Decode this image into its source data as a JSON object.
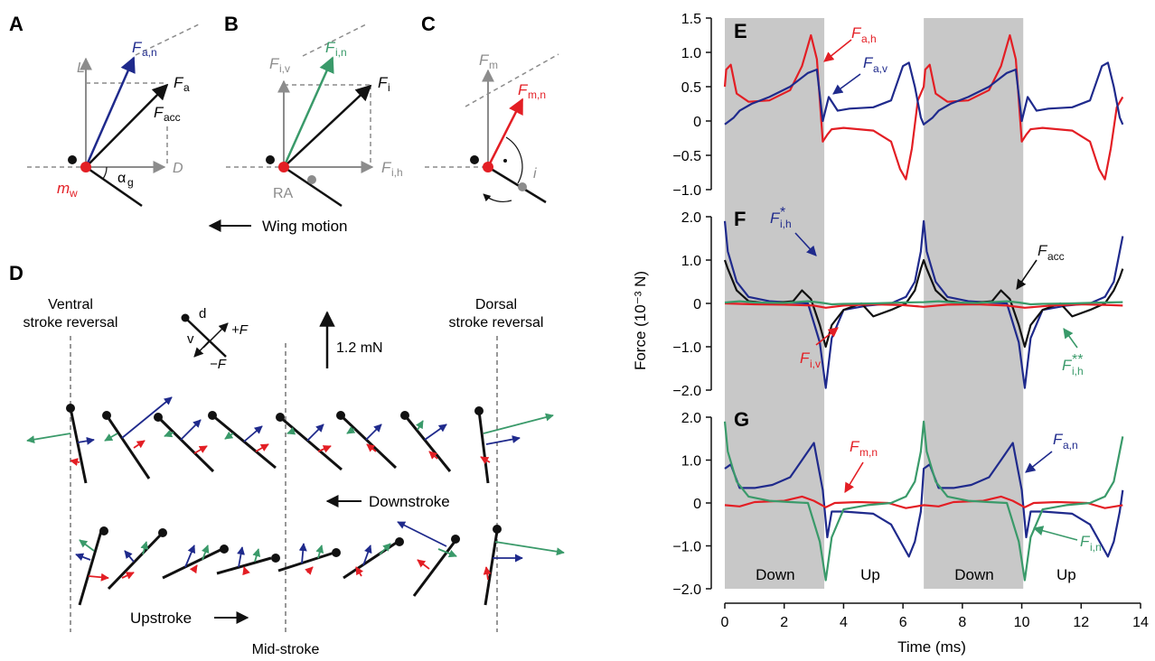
{
  "colors": {
    "red": "#e31e24",
    "blue": "#1f2a8c",
    "green": "#3a9a6a",
    "gray": "#8c8c8c",
    "black": "#111111",
    "shade": "#c8c8c8"
  },
  "panels": {
    "A": {
      "letter": "A",
      "labels": {
        "Fan_main": "F",
        "Fan_sub": "a,n",
        "Fa_main": "F",
        "Fa_sub": "a",
        "Facc_main": "F",
        "Facc_sub": "acc",
        "L": "L",
        "D": "D",
        "mw_main": "m",
        "mw_sub": "w",
        "alpha_main": "α",
        "alpha_sub": "g"
      }
    },
    "B": {
      "letter": "B",
      "labels": {
        "Fiv_main": "F",
        "Fiv_sub": "i,v",
        "Fin_main": "F",
        "Fin_sub": "i,n",
        "Fi_main": "F",
        "Fi_sub": "i",
        "Fih_main": "F",
        "Fih_sub": "i,h",
        "RA": "RA"
      }
    },
    "C": {
      "letter": "C",
      "labels": {
        "Fm_main": "F",
        "Fm_sub": "m",
        "Fmn_main": "F",
        "Fmn_sub": "m,n",
        "i": "i"
      }
    },
    "wing_motion": "Wing motion",
    "D": {
      "letter": "D",
      "ventral_line1": "Ventral",
      "ventral_line2": "stroke reversal",
      "dorsal_line1": "Dorsal",
      "dorsal_line2": "stroke reversal",
      "scale": "1.2 mN",
      "key_d": "d",
      "key_v": "v",
      "key_plus": "+F",
      "key_minus": "−F",
      "downstroke": "Downstroke",
      "upstroke": "Upstroke",
      "midstroke": "Mid-stroke"
    }
  },
  "chart_data": [
    {
      "type": "line",
      "panel": "E",
      "xlim": [
        0,
        14
      ],
      "ylim": [
        -1.0,
        1.5
      ],
      "yticks": [
        "1.5",
        "1.0",
        "0.5",
        "0",
        "−0.5",
        "−1.0"
      ],
      "series": [
        {
          "name": "F a,h",
          "color": "#e31e24",
          "x": [
            0,
            0.05,
            0.2,
            0.4,
            0.8,
            1.5,
            2.2,
            2.6,
            2.9,
            3.1,
            3.3,
            3.45,
            3.6,
            4.0,
            5.0,
            5.6,
            5.9,
            6.1,
            6.3,
            6.5,
            6.7,
            6.75,
            6.9,
            7.1,
            7.5,
            8.2,
            8.9,
            9.3,
            9.6,
            9.8,
            10.0,
            10.15,
            10.3,
            10.7,
            11.7,
            12.3,
            12.6,
            12.8,
            13.0,
            13.2,
            13.4
          ],
          "y": [
            0.5,
            0.75,
            0.82,
            0.4,
            0.28,
            0.3,
            0.45,
            0.8,
            1.25,
            0.9,
            -0.3,
            -0.2,
            -0.12,
            -0.1,
            -0.14,
            -0.3,
            -0.7,
            -0.85,
            -0.4,
            0.3,
            0.5,
            0.75,
            0.82,
            0.4,
            0.28,
            0.3,
            0.45,
            0.8,
            1.25,
            0.9,
            -0.3,
            -0.2,
            -0.12,
            -0.1,
            -0.14,
            -0.3,
            -0.7,
            -0.85,
            -0.4,
            0.2,
            0.35
          ]
        },
        {
          "name": "F a,v",
          "color": "#1f2a8c",
          "x": [
            0,
            0.3,
            0.5,
            0.9,
            1.5,
            2.2,
            2.8,
            3.1,
            3.3,
            3.5,
            3.8,
            4.2,
            5.0,
            5.6,
            6.0,
            6.2,
            6.4,
            6.6,
            6.7,
            7.0,
            7.2,
            7.6,
            8.2,
            8.9,
            9.5,
            9.8,
            10.0,
            10.2,
            10.5,
            10.9,
            11.7,
            12.3,
            12.7,
            12.9,
            13.1,
            13.3,
            13.4
          ],
          "y": [
            -0.05,
            0.05,
            0.15,
            0.25,
            0.35,
            0.5,
            0.7,
            0.75,
            0.0,
            0.35,
            0.15,
            0.18,
            0.2,
            0.3,
            0.8,
            0.85,
            0.5,
            0.05,
            -0.05,
            0.05,
            0.15,
            0.25,
            0.35,
            0.5,
            0.7,
            0.75,
            0.0,
            0.35,
            0.15,
            0.18,
            0.2,
            0.3,
            0.8,
            0.85,
            0.5,
            0.05,
            -0.05
          ]
        }
      ]
    },
    {
      "type": "line",
      "panel": "F",
      "xlim": [
        0,
        14
      ],
      "ylim": [
        -2.0,
        2.0
      ],
      "yticks": [
        "2.0",
        "1.0",
        "0",
        "−1.0",
        "−2.0"
      ],
      "series": [
        {
          "name": "F* i,h",
          "color": "#1f2a8c",
          "x": [
            0,
            0.1,
            0.4,
            0.8,
            1.5,
            2.2,
            2.8,
            3.2,
            3.4,
            3.6,
            4.0,
            4.8,
            5.6,
            6.1,
            6.4,
            6.6,
            6.7,
            6.8,
            7.1,
            7.5,
            8.2,
            8.9,
            9.5,
            9.9,
            10.1,
            10.3,
            10.7,
            11.5,
            12.3,
            12.8,
            13.1,
            13.3,
            13.4
          ],
          "y": [
            1.9,
            1.2,
            0.5,
            0.15,
            0.05,
            0.02,
            0.0,
            -0.9,
            -1.95,
            -0.8,
            -0.15,
            -0.05,
            0.0,
            0.15,
            0.5,
            1.2,
            1.9,
            1.2,
            0.5,
            0.15,
            0.05,
            0.02,
            0.0,
            -0.9,
            -1.95,
            -0.8,
            -0.15,
            -0.05,
            0.0,
            0.15,
            0.5,
            1.2,
            1.55
          ]
        },
        {
          "name": "F acc",
          "color": "#111111",
          "x": [
            0,
            0.1,
            0.4,
            0.8,
            1.5,
            2.3,
            2.6,
            2.9,
            3.2,
            3.4,
            3.6,
            4.0,
            4.6,
            5.0,
            5.6,
            6.1,
            6.4,
            6.6,
            6.7,
            6.8,
            7.1,
            7.5,
            8.2,
            9.0,
            9.3,
            9.6,
            9.9,
            10.1,
            10.3,
            10.7,
            11.3,
            11.7,
            12.3,
            12.8,
            13.1,
            13.3,
            13.4
          ],
          "y": [
            1.0,
            0.8,
            0.3,
            0.05,
            0.0,
            0.05,
            0.3,
            0.1,
            -0.5,
            -1.0,
            -0.5,
            -0.15,
            0.0,
            -0.3,
            -0.15,
            0.0,
            0.3,
            0.8,
            1.0,
            0.8,
            0.3,
            0.05,
            0.0,
            0.05,
            0.3,
            0.1,
            -0.5,
            -1.0,
            -0.5,
            -0.15,
            0.0,
            -0.3,
            -0.15,
            0.0,
            0.3,
            0.6,
            0.8
          ]
        },
        {
          "name": "F i,v",
          "color": "#e31e24",
          "x": [
            0,
            1,
            2,
            3,
            3.4,
            4,
            5,
            6,
            6.7,
            7.5,
            8.5,
            9.5,
            10.1,
            11,
            12,
            13,
            13.4
          ],
          "y": [
            0,
            -0.02,
            -0.03,
            -0.05,
            -0.1,
            -0.05,
            -0.02,
            -0.04,
            -0.08,
            -0.03,
            -0.02,
            -0.05,
            -0.1,
            -0.05,
            -0.02,
            -0.04,
            -0.05
          ]
        },
        {
          "name": "F** i,h",
          "color": "#3a9a6a",
          "x": [
            0,
            0.5,
            1,
            2,
            2.8,
            3.2,
            3.6,
            4,
            5,
            6,
            6.7,
            7.2,
            7.7,
            8.5,
            9.5,
            9.9,
            10.3,
            10.7,
            11.7,
            12.7,
            13.4
          ],
          "y": [
            0.02,
            0.05,
            0.02,
            0.01,
            0.05,
            0.02,
            -0.02,
            -0.01,
            0.0,
            0.02,
            0.03,
            0.05,
            0.02,
            0.01,
            0.05,
            0.02,
            -0.02,
            -0.01,
            0.0,
            0.02,
            0.03
          ]
        }
      ]
    },
    {
      "type": "line",
      "panel": "G",
      "xlim": [
        0,
        14
      ],
      "ylim": [
        -2.0,
        2.0
      ],
      "yticks": [
        "2.0",
        "1.0",
        "0",
        "−1.0",
        "−2.0"
      ],
      "xticks": [
        "0",
        "2",
        "4",
        "6",
        "8",
        "10",
        "12",
        "14"
      ],
      "xlabel": "Time (ms)",
      "series": [
        {
          "name": "F a,n",
          "color": "#1f2a8c",
          "x": [
            0,
            0.2,
            0.5,
            1.0,
            1.6,
            2.2,
            2.7,
            3.0,
            3.3,
            3.45,
            3.6,
            4.0,
            5.0,
            5.6,
            6.0,
            6.2,
            6.4,
            6.6,
            6.7,
            6.9,
            7.2,
            7.7,
            8.3,
            8.9,
            9.4,
            9.7,
            10.0,
            10.15,
            10.3,
            10.7,
            11.7,
            12.3,
            12.7,
            12.9,
            13.1,
            13.3,
            13.4
          ],
          "y": [
            0.8,
            0.9,
            0.35,
            0.35,
            0.42,
            0.6,
            1.1,
            1.4,
            0.3,
            -0.8,
            -0.2,
            -0.2,
            -0.25,
            -0.5,
            -1.0,
            -1.25,
            -0.9,
            -0.2,
            0.8,
            0.9,
            0.35,
            0.35,
            0.42,
            0.6,
            1.1,
            1.4,
            0.3,
            -0.8,
            -0.2,
            -0.2,
            -0.25,
            -0.5,
            -1.0,
            -1.25,
            -0.9,
            -0.2,
            0.3
          ]
        },
        {
          "name": "F m,n",
          "color": "#e31e24",
          "x": [
            0,
            0.5,
            1,
            2,
            2.6,
            3,
            3.4,
            3.7,
            4.5,
            5.5,
            6.1,
            6.7,
            7.2,
            7.7,
            8.7,
            9.3,
            9.7,
            10.1,
            10.4,
            11.2,
            12.2,
            12.8,
            13.4
          ],
          "y": [
            -0.05,
            -0.08,
            0.02,
            0.05,
            0.15,
            0.05,
            -0.1,
            0.0,
            0.02,
            0.0,
            -0.12,
            -0.05,
            -0.08,
            0.02,
            0.05,
            0.15,
            0.05,
            -0.1,
            0.0,
            0.02,
            0.0,
            -0.12,
            -0.05
          ]
        },
        {
          "name": "F i,n",
          "color": "#3a9a6a",
          "x": [
            0,
            0.1,
            0.4,
            0.8,
            1.5,
            2.2,
            2.8,
            3.2,
            3.4,
            3.6,
            4.0,
            4.8,
            5.6,
            6.1,
            6.4,
            6.6,
            6.7,
            6.8,
            7.1,
            7.5,
            8.2,
            8.9,
            9.5,
            9.9,
            10.1,
            10.3,
            10.7,
            11.5,
            12.3,
            12.8,
            13.1,
            13.3,
            13.4
          ],
          "y": [
            1.9,
            1.2,
            0.5,
            0.15,
            0.05,
            0.02,
            0.0,
            -0.9,
            -1.8,
            -0.8,
            -0.15,
            -0.05,
            0.0,
            0.15,
            0.5,
            1.2,
            1.9,
            1.2,
            0.5,
            0.15,
            0.05,
            0.02,
            0.0,
            -0.9,
            -1.8,
            -0.8,
            -0.15,
            -0.05,
            0.0,
            0.15,
            0.5,
            1.2,
            1.55
          ]
        }
      ]
    }
  ],
  "charts_common": {
    "ylabel": "Force (10⁻³ N)",
    "down_label": "Down",
    "up_label": "Up",
    "downstroke_intervals": [
      [
        0,
        3.35
      ],
      [
        6.7,
        10.05
      ]
    ],
    "annotations": {
      "E": {
        "letter": "E",
        "Fah_main": "F",
        "Fah_sub": "a,h",
        "Fav_main": "F",
        "Fav_sub": "a,v"
      },
      "F": {
        "letter": "F",
        "Fih_main": "F",
        "Fih_sub": "i,h",
        "Fih_star": "*",
        "Facc_main": "F",
        "Facc_sub": "acc",
        "Fiv_main": "F",
        "Fiv_sub": "i,v",
        "Fih2_main": "F",
        "Fih2_sub": "i,h",
        "Fih2_star": "**"
      },
      "G": {
        "letter": "G",
        "Fmn_main": "F",
        "Fmn_sub": "m,n",
        "Fan_main": "F",
        "Fan_sub": "a,n",
        "Fin_main": "F",
        "Fin_sub": "i,n"
      }
    }
  }
}
